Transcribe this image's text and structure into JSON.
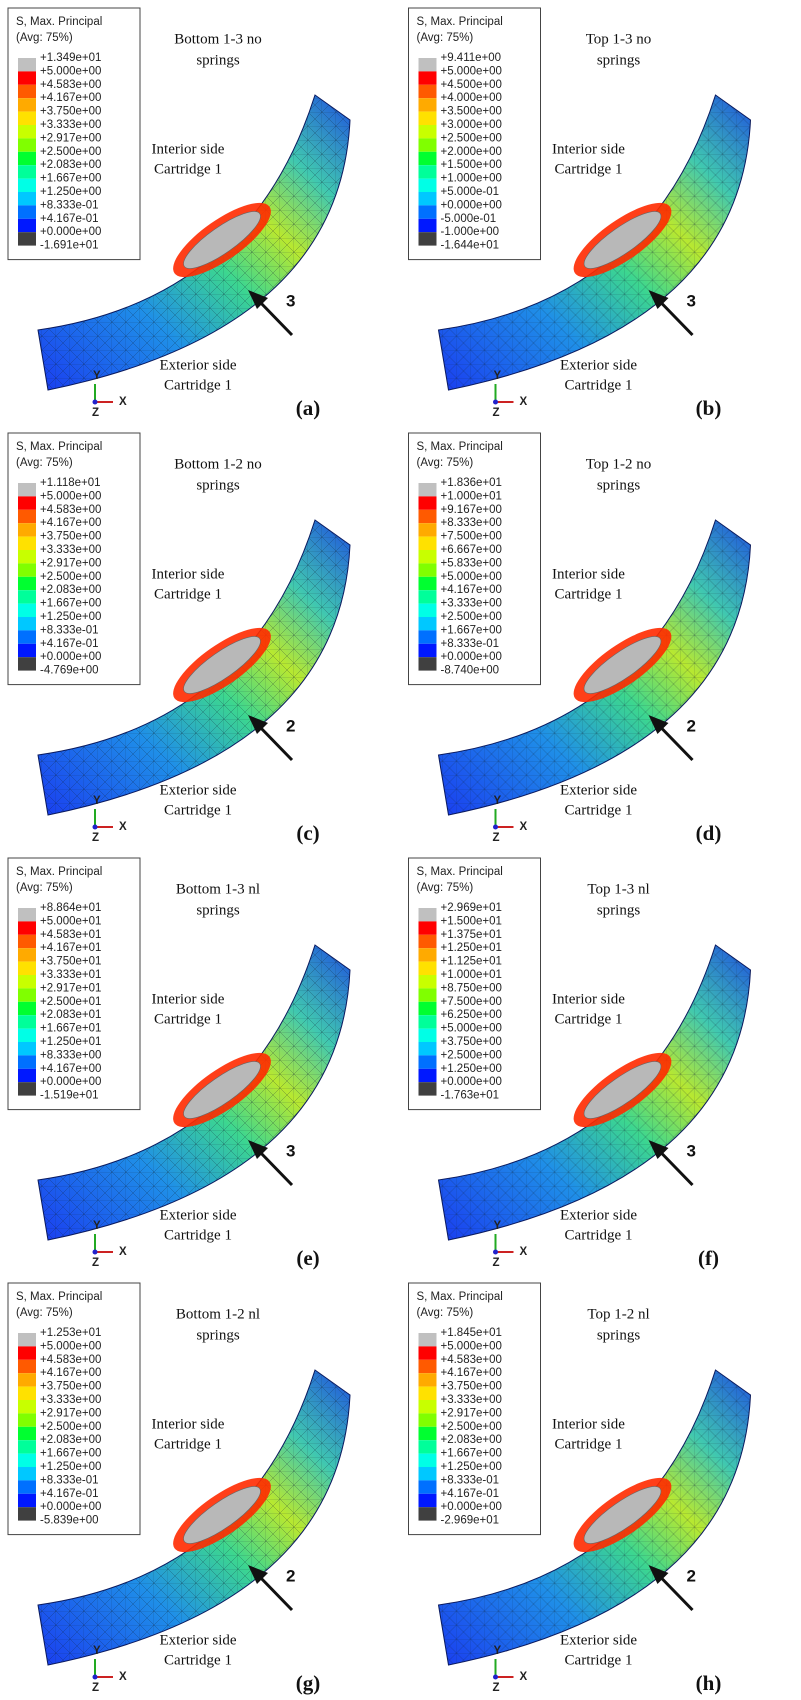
{
  "legend_colors": [
    "#c0c0c0",
    "#ff0000",
    "#ff5a00",
    "#ffaa00",
    "#ffe100",
    "#c8ff00",
    "#80ff00",
    "#00ff30",
    "#00ff9a",
    "#00ffe6",
    "#00c8ff",
    "#0070ff",
    "#0018ff",
    "#404040"
  ],
  "panels": [
    {
      "title_lines": [
        "Bottom 1-3 no",
        "springs"
      ],
      "legend": {
        "title": "S, Max. Principal",
        "avg": "(Avg: 75%)",
        "labels": [
          "+1.349e+01",
          "+5.000e+00",
          "+4.583e+00",
          "+4.167e+00",
          "+3.750e+00",
          "+3.333e+00",
          "+2.917e+00",
          "+2.500e+00",
          "+2.083e+00",
          "+1.667e+00",
          "+1.250e+00",
          "+8.333e-01",
          "+4.167e-01",
          "+0.000e+00",
          "-1.691e+01"
        ]
      },
      "interior_lines": [
        "Interior side",
        "Cartridge 1"
      ],
      "exterior_lines": [
        "Exterior side",
        "Cartridge 1"
      ],
      "arrow_label": "3",
      "panel_label": "(a)",
      "triad": [
        "Y",
        "X",
        "Z"
      ]
    },
    {
      "title_lines": [
        "Top 1-3 no",
        "springs"
      ],
      "legend": {
        "title": "S, Max. Principal",
        "avg": "(Avg: 75%)",
        "labels": [
          "+9.411e+00",
          "+5.000e+00",
          "+4.500e+00",
          "+4.000e+00",
          "+3.500e+00",
          "+3.000e+00",
          "+2.500e+00",
          "+2.000e+00",
          "+1.500e+00",
          "+1.000e+00",
          "+5.000e-01",
          "+0.000e+00",
          "-5.000e-01",
          "-1.000e+00",
          "-1.644e+01"
        ]
      },
      "interior_lines": [
        "Interior side",
        "Cartridge 1"
      ],
      "exterior_lines": [
        "Exterior side",
        "Cartridge 1"
      ],
      "arrow_label": "3",
      "panel_label": "(b)",
      "triad": [
        "Y",
        "X",
        "Z"
      ]
    },
    {
      "title_lines": [
        "Bottom 1-2 no",
        "springs"
      ],
      "legend": {
        "title": "S, Max. Principal",
        "avg": "(Avg: 75%)",
        "labels": [
          "+1.118e+01",
          "+5.000e+00",
          "+4.583e+00",
          "+4.167e+00",
          "+3.750e+00",
          "+3.333e+00",
          "+2.917e+00",
          "+2.500e+00",
          "+2.083e+00",
          "+1.667e+00",
          "+1.250e+00",
          "+8.333e-01",
          "+4.167e-01",
          "+0.000e+00",
          "-4.769e+00"
        ]
      },
      "interior_lines": [
        "Interior side",
        "Cartridge 1"
      ],
      "exterior_lines": [
        "Exterior side",
        "Cartridge 1"
      ],
      "arrow_label": "2",
      "panel_label": "(c)",
      "triad": [
        "Y",
        "X",
        "Z"
      ]
    },
    {
      "title_lines": [
        "Top 1-2 no",
        "springs"
      ],
      "legend": {
        "title": "S, Max. Principal",
        "avg": "(Avg: 75%)",
        "labels": [
          "+1.836e+01",
          "+1.000e+01",
          "+9.167e+00",
          "+8.333e+00",
          "+7.500e+00",
          "+6.667e+00",
          "+5.833e+00",
          "+5.000e+00",
          "+4.167e+00",
          "+3.333e+00",
          "+2.500e+00",
          "+1.667e+00",
          "+8.333e-01",
          "+0.000e+00",
          "-8.740e+00"
        ]
      },
      "interior_lines": [
        "Interior side",
        "Cartridge 1"
      ],
      "exterior_lines": [
        "Exterior side",
        "Cartridge 1"
      ],
      "arrow_label": "2",
      "panel_label": "(d)",
      "triad": [
        "Y",
        "X",
        "Z"
      ]
    },
    {
      "title_lines": [
        "Bottom 1-3 nl",
        "springs"
      ],
      "legend": {
        "title": "S, Max. Principal",
        "avg": "(Avg: 75%)",
        "labels": [
          "+8.864e+01",
          "+5.000e+01",
          "+4.583e+01",
          "+4.167e+01",
          "+3.750e+01",
          "+3.333e+01",
          "+2.917e+01",
          "+2.500e+01",
          "+2.083e+01",
          "+1.667e+01",
          "+1.250e+01",
          "+8.333e+00",
          "+4.167e+00",
          "+0.000e+00",
          "-1.519e+01"
        ]
      },
      "interior_lines": [
        "Interior side",
        "Cartridge 1"
      ],
      "exterior_lines": [
        "Exterior side",
        "Cartridge 1"
      ],
      "arrow_label": "3",
      "panel_label": "(e)",
      "triad": [
        "Y",
        "X",
        "Z"
      ]
    },
    {
      "title_lines": [
        "Top 1-3 nl",
        "springs"
      ],
      "legend": {
        "title": "S, Max. Principal",
        "avg": "(Avg: 75%)",
        "labels": [
          "+2.969e+01",
          "+1.500e+01",
          "+1.375e+01",
          "+1.250e+01",
          "+1.125e+01",
          "+1.000e+01",
          "+8.750e+00",
          "+7.500e+00",
          "+6.250e+00",
          "+5.000e+00",
          "+3.750e+00",
          "+2.500e+00",
          "+1.250e+00",
          "+0.000e+00",
          "-1.763e+01"
        ]
      },
      "interior_lines": [
        "Interior side",
        "Cartridge 1"
      ],
      "exterior_lines": [
        "Exterior side",
        "Cartridge 1"
      ],
      "arrow_label": "3",
      "panel_label": "(f)",
      "triad": [
        "Y",
        "X",
        "Z"
      ]
    },
    {
      "title_lines": [
        "Bottom 1-2 nl",
        "springs"
      ],
      "legend": {
        "title": "S, Max. Principal",
        "avg": "(Avg: 75%)",
        "labels": [
          "+1.253e+01",
          "+5.000e+00",
          "+4.583e+00",
          "+4.167e+00",
          "+3.750e+00",
          "+3.333e+00",
          "+2.917e+00",
          "+2.500e+00",
          "+2.083e+00",
          "+1.667e+00",
          "+1.250e+00",
          "+8.333e-01",
          "+4.167e-01",
          "+0.000e+00",
          "-5.839e+00"
        ]
      },
      "interior_lines": [
        "Interior side",
        "Cartridge 1"
      ],
      "exterior_lines": [
        "Exterior side",
        "Cartridge 1"
      ],
      "arrow_label": "2",
      "panel_label": "(g)",
      "triad": [
        "Y",
        "X",
        "Z"
      ]
    },
    {
      "title_lines": [
        "Top 1-2 nl",
        "springs"
      ],
      "legend": {
        "title": "S, Max. Principal",
        "avg": "(Avg: 75%)",
        "labels": [
          "+1.845e+01",
          "+5.000e+00",
          "+4.583e+00",
          "+4.167e+00",
          "+3.750e+00",
          "+3.333e+00",
          "+2.917e+00",
          "+2.500e+00",
          "+2.083e+00",
          "+1.667e+00",
          "+1.250e+00",
          "+8.333e-01",
          "+4.167e-01",
          "+0.000e+00",
          "-2.969e+01"
        ]
      },
      "interior_lines": [
        "Interior side",
        "Cartridge 1"
      ],
      "exterior_lines": [
        "Exterior side",
        "Cartridge 1"
      ],
      "arrow_label": "2",
      "panel_label": "(h)",
      "triad": [
        "Y",
        "X",
        "Z"
      ]
    }
  ]
}
